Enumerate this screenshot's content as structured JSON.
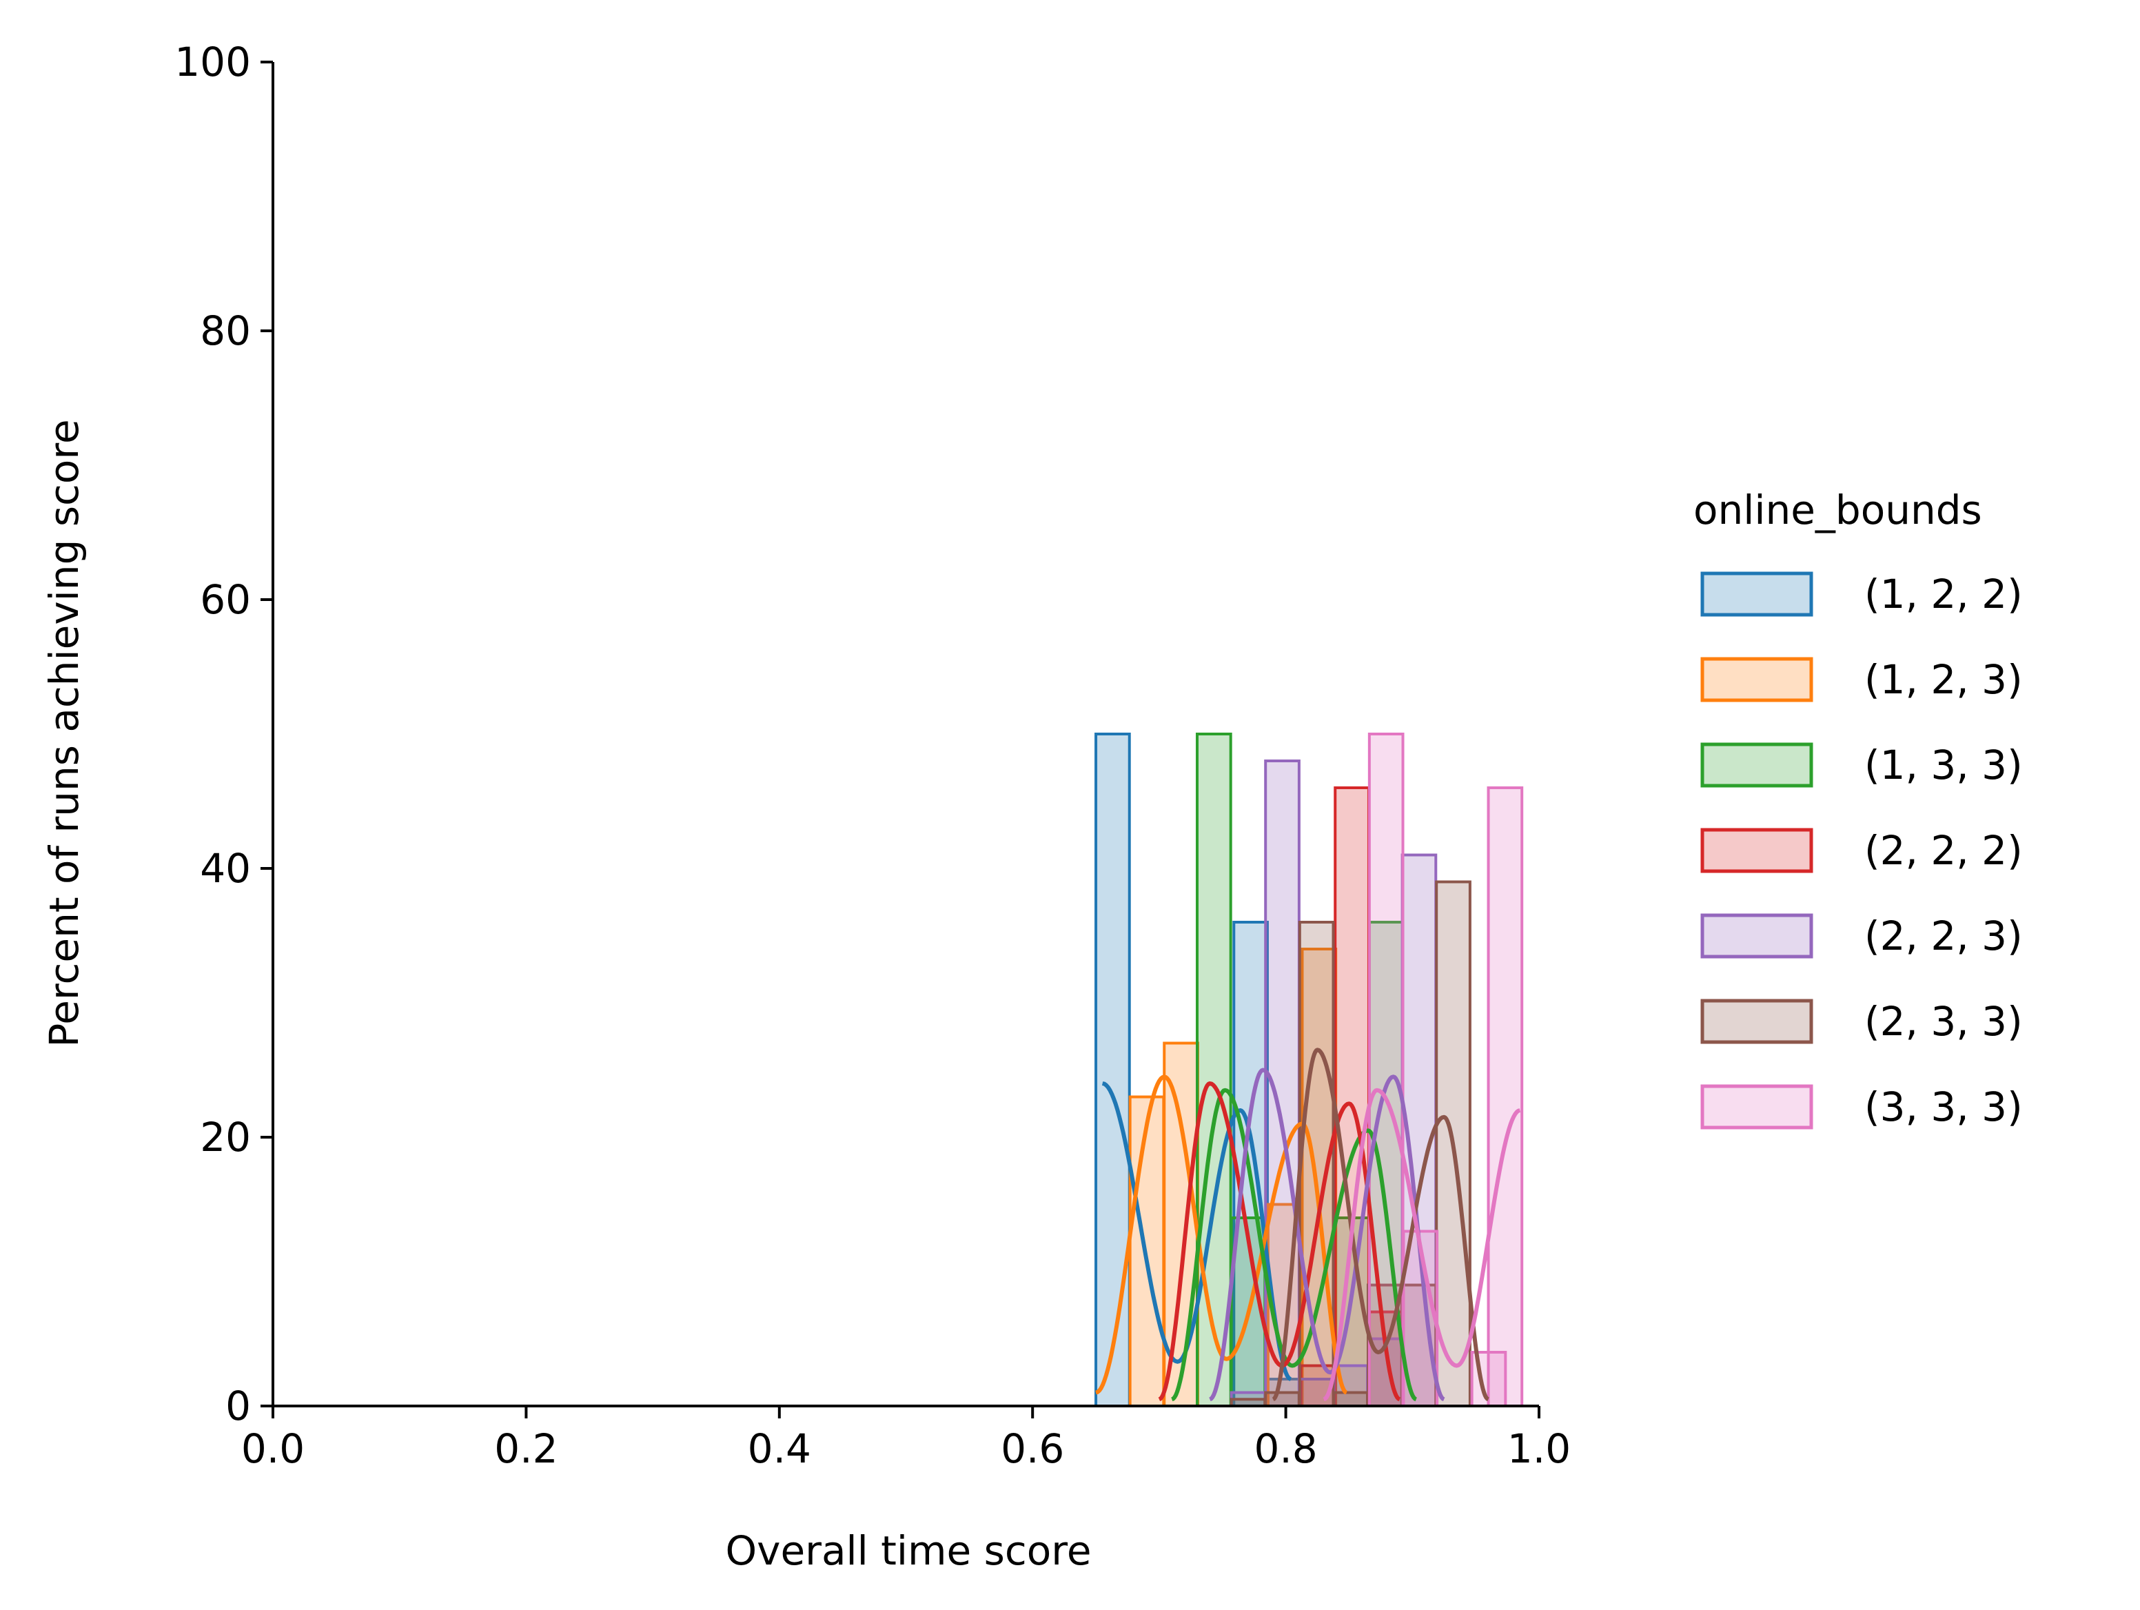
{
  "chart_data": {
    "type": "histogram",
    "xlabel": "Overall time score",
    "ylabel": "Percent of runs achieving score",
    "xlim": [
      0.0,
      1.0
    ],
    "ylim": [
      0,
      100
    ],
    "xticks": [
      "0.0",
      "0.2",
      "0.4",
      "0.6",
      "0.8",
      "1.0"
    ],
    "yticks": [
      "0",
      "20",
      "40",
      "60",
      "80",
      "100"
    ],
    "grid": false,
    "legend": {
      "title": "online_bounds",
      "placement": "right-outside",
      "entries": [
        "(1, 2, 2)",
        "(1, 2, 3)",
        "(1, 3, 3)",
        "(2, 2, 2)",
        "(2, 2, 3)",
        "(2, 3, 3)",
        "(3, 3, 3)"
      ]
    },
    "bin_width": 0.0265,
    "series": [
      {
        "name": "(1, 2, 2)",
        "color": "#1f77b4",
        "bins": [
          [
            0.65,
            50
          ],
          [
            0.759,
            36
          ],
          [
            0.784,
            2
          ]
        ],
        "kde": [
          [
            0.6552,
            24.0
          ],
          [
            0.7145,
            3.3
          ],
          [
            0.764,
            22.0
          ],
          [
            0.804,
            2.0
          ]
        ]
      },
      {
        "name": "(1, 2, 3)",
        "color": "#ff7f0e",
        "bins": [
          [
            0.677,
            23
          ],
          [
            0.704,
            27
          ],
          [
            0.786,
            15
          ],
          [
            0.813,
            34
          ]
        ],
        "kde": [
          [
            0.65,
            1.0
          ],
          [
            0.704,
            24.5
          ],
          [
            0.753,
            3.5
          ],
          [
            0.813,
            21.0
          ],
          [
            0.848,
            1.0
          ]
        ]
      },
      {
        "name": "(1, 3, 3)",
        "color": "#2ca02c",
        "bins": [
          [
            0.73,
            50
          ],
          [
            0.757,
            14
          ],
          [
            0.839,
            14
          ],
          [
            0.866,
            36
          ]
        ],
        "kde": [
          [
            0.71,
            0.5
          ],
          [
            0.752,
            23.5
          ],
          [
            0.805,
            3.0
          ],
          [
            0.865,
            20.5
          ],
          [
            0.903,
            0.5
          ]
        ]
      },
      {
        "name": "(2, 2, 2)",
        "color": "#d62728",
        "bins": [
          [
            0.812,
            3
          ],
          [
            0.839,
            46
          ],
          [
            0.866,
            7
          ]
        ],
        "kde": [
          [
            0.7,
            0.5
          ],
          [
            0.74,
            24.0
          ],
          [
            0.797,
            3.0
          ],
          [
            0.85,
            22.5
          ],
          [
            0.89,
            0.5
          ]
        ]
      },
      {
        "name": "(2, 2, 3)",
        "color": "#9467bd",
        "bins": [
          [
            0.757,
            1
          ],
          [
            0.784,
            48
          ],
          [
            0.811,
            2
          ],
          [
            0.838,
            3
          ],
          [
            0.865,
            5
          ],
          [
            0.892,
            41
          ]
        ],
        "kde": [
          [
            0.74,
            0.5
          ],
          [
            0.782,
            25.0
          ],
          [
            0.835,
            2.5
          ],
          [
            0.885,
            24.5
          ],
          [
            0.925,
            0.5
          ]
        ]
      },
      {
        "name": "(2, 3, 3)",
        "color": "#8c564b",
        "bins": [
          [
            0.757,
            0.5
          ],
          [
            0.784,
            1
          ],
          [
            0.811,
            36
          ],
          [
            0.838,
            1
          ],
          [
            0.865,
            9
          ],
          [
            0.892,
            9
          ],
          [
            0.919,
            39
          ]
        ],
        "kde": [
          [
            0.79,
            0.5
          ],
          [
            0.825,
            26.5
          ],
          [
            0.873,
            4.0
          ],
          [
            0.925,
            21.5
          ],
          [
            0.96,
            0.5
          ]
        ]
      },
      {
        "name": "(3, 3, 3)",
        "color": "#e377c2",
        "bins": [
          [
            0.866,
            50
          ],
          [
            0.893,
            13
          ],
          [
            0.947,
            4
          ],
          [
            0.96,
            46
          ]
        ],
        "kde": [
          [
            0.83,
            0.5
          ],
          [
            0.872,
            23.5
          ],
          [
            0.935,
            3.0
          ],
          [
            0.985,
            22.0
          ]
        ]
      }
    ]
  }
}
